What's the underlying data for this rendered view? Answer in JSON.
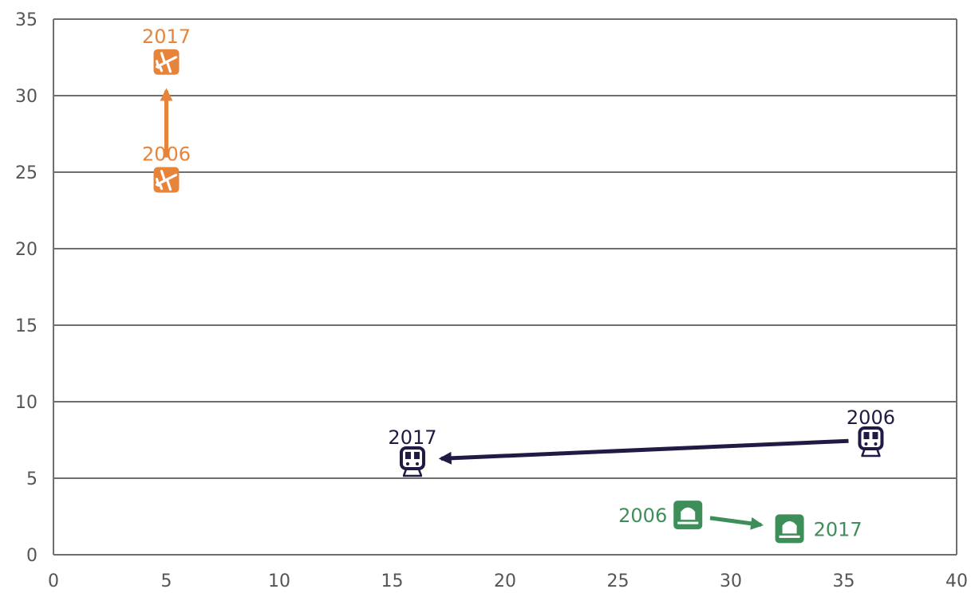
{
  "chart_data": {
    "type": "scatter",
    "title": "",
    "xlabel": "",
    "ylabel": "",
    "xlim": [
      0,
      40
    ],
    "ylim": [
      0,
      35
    ],
    "x_ticks": [
      "0",
      "5",
      "10",
      "15",
      "20",
      "25",
      "30",
      "35",
      "40"
    ],
    "y_ticks": [
      "0",
      "5",
      "10",
      "15",
      "20",
      "25",
      "30",
      "35"
    ],
    "grid": true,
    "series": [
      {
        "icon": "airplane-icon",
        "color": "#E8843A",
        "points": [
          {
            "label": "2006",
            "x": 5,
            "y": 24.5
          },
          {
            "label": "2017",
            "x": 5,
            "y": 32.2
          }
        ]
      },
      {
        "icon": "train-icon",
        "color": "#1F1B45",
        "points": [
          {
            "label": "2006",
            "x": 36.2,
            "y": 7.5
          },
          {
            "label": "2017",
            "x": 15.9,
            "y": 6.2
          }
        ]
      },
      {
        "icon": "bus-icon",
        "color": "#3E8E5A",
        "points": [
          {
            "label": "2006",
            "x": 28.1,
            "y": 2.6
          },
          {
            "label": "2017",
            "x": 32.6,
            "y": 1.7
          }
        ]
      }
    ]
  }
}
